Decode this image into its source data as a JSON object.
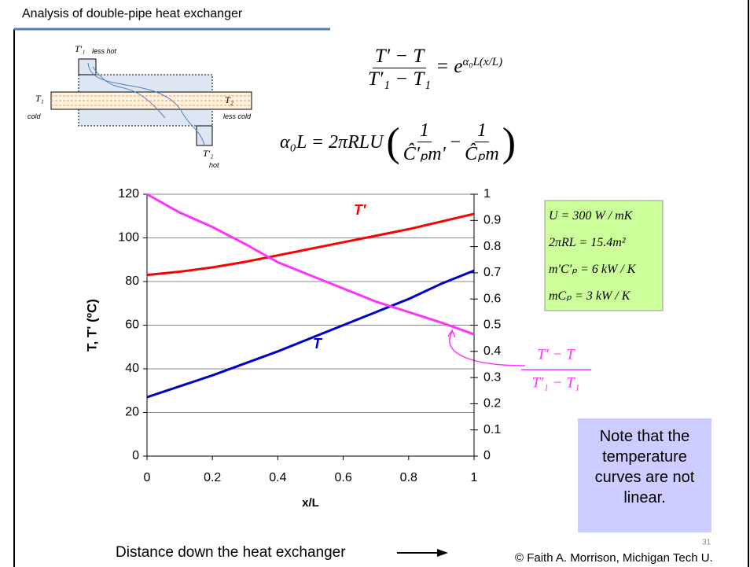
{
  "header": {
    "title": "Analysis of double-pipe heat exchanger"
  },
  "diagram": {
    "t1_prime": "T′₁",
    "less_hot": "less hot",
    "t1": "T₁",
    "cold": "cold",
    "t2": "T₂",
    "less_cold": "less cold",
    "t2_prime": "T′₂",
    "hot": "hot"
  },
  "equations": {
    "ratio": {
      "numerator": "T′ − T",
      "denominator": "T′₁ − T₁",
      "equals": "= e",
      "exponent": "α₀L(x/L)"
    },
    "alpha": {
      "lhs": "α₀L = 2πRLU",
      "open": "(",
      "num1": "1",
      "den1": "Ĉ′ₚm′",
      "minus": "−",
      "num2": "1",
      "den2": "Ĉₚm",
      "close": ")"
    }
  },
  "chart_data": {
    "type": "line",
    "x": [
      0,
      0.1,
      0.2,
      0.3,
      0.4,
      0.5,
      0.6,
      0.7,
      0.8,
      0.9,
      1
    ],
    "xlim": [
      0,
      1
    ],
    "xticks": [
      0,
      0.2,
      0.4,
      0.6,
      0.8,
      1
    ],
    "ylim": [
      0,
      120
    ],
    "yticks": [
      0,
      20,
      40,
      60,
      80,
      100,
      120
    ],
    "y2lim": [
      0,
      1
    ],
    "y2ticks": [
      0,
      0.1,
      0.2,
      0.3,
      0.4,
      0.5,
      0.6,
      0.7,
      0.8,
      0.9,
      1
    ],
    "grid": true,
    "xlabel": "x/L",
    "ylabel": "T, T' (ºC)",
    "series": [
      {
        "name": "T′",
        "color": "#ff0000",
        "values": [
          83,
          84.5,
          86.5,
          89,
          92,
          95,
          98,
          101,
          104,
          107.5,
          111
        ]
      },
      {
        "name": "T",
        "color": "#0000cc",
        "values": [
          27,
          32,
          37,
          42.5,
          48,
          54,
          60,
          66,
          72,
          79,
          85
        ]
      },
      {
        "color": "#ff33ff",
        "axis": "y2",
        "values": [
          1,
          0.93,
          0.875,
          0.81,
          0.74,
          0.69,
          0.64,
          0.59,
          0.55,
          0.51,
          0.465
        ]
      }
    ],
    "ratio_label": {
      "numerator": "T′ − T",
      "denominator": "T′₁ − T₁"
    }
  },
  "parameters": [
    "U = 300 W / mK",
    "2πRL = 15.4m²",
    "m′C′ₚ = 6 kW / K",
    "mCₚ = 3 kW / K"
  ],
  "note": "Note that the temperature curves are not linear.",
  "footer": {
    "caption": "Distance down the heat exchanger",
    "page": "31",
    "credit": "© Faith A. Morrison, Michigan Tech U."
  }
}
